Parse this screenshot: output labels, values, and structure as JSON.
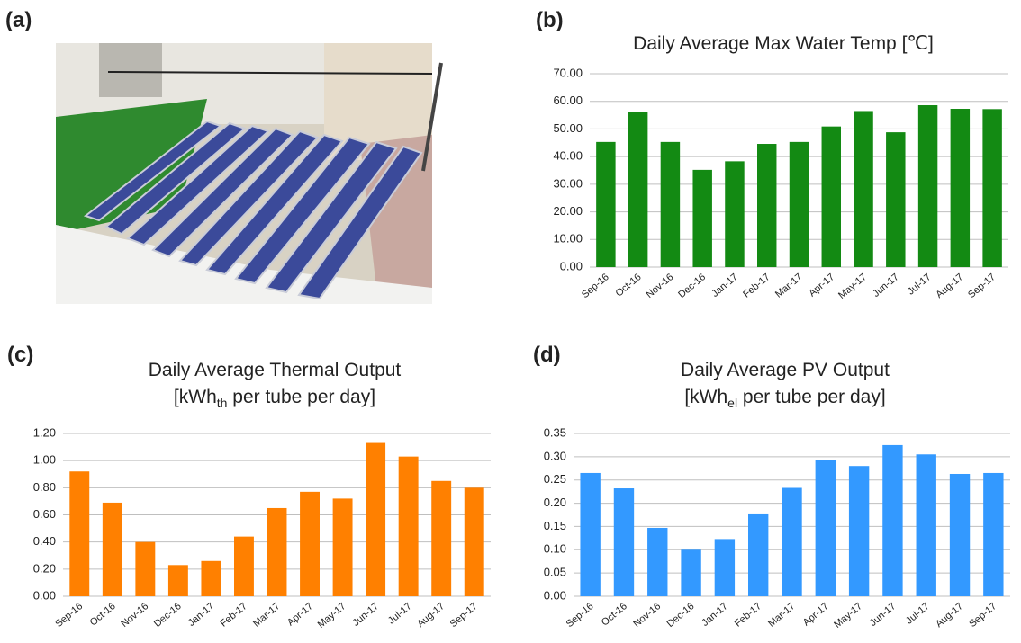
{
  "figure_a": {
    "label": "(a)"
  },
  "chart_data": [
    {
      "type": "bar",
      "label": "(b)",
      "title": "Daily Average Max Water Temp [℃]",
      "color": "#138a13",
      "grid": true,
      "categories": [
        "Sep-16",
        "Oct-16",
        "Nov-16",
        "Dec-16",
        "Jan-17",
        "Feb-17",
        "Mar-17",
        "Apr-17",
        "May-17",
        "Jun-17",
        "Jul-17",
        "Aug-17",
        "Sep-17"
      ],
      "values": [
        45.3,
        56.2,
        45.3,
        35.2,
        38.3,
        44.6,
        45.3,
        50.9,
        56.5,
        48.8,
        58.6,
        57.3,
        57.2
      ],
      "ylim": [
        0,
        70
      ],
      "yticks": [
        {
          "value": 0,
          "label": "0.00"
        },
        {
          "value": 10,
          "label": "10.00"
        },
        {
          "value": 20,
          "label": "20.00"
        },
        {
          "value": 30,
          "label": "30.00"
        },
        {
          "value": 40,
          "label": "40.00"
        },
        {
          "value": 50,
          "label": "50.00"
        },
        {
          "value": 60,
          "label": "60.00"
        },
        {
          "value": 70,
          "label": "70.00"
        }
      ]
    },
    {
      "type": "bar",
      "label": "(c)",
      "title": "Daily Average Thermal Output",
      "subtitle_parts": [
        "[kWh",
        "th",
        " per tube per day]"
      ],
      "color": "#ff8000",
      "grid": true,
      "categories": [
        "Sep-16",
        "Oct-16",
        "Nov-16",
        "Dec-16",
        "Jan-17",
        "Feb-17",
        "Mar-17",
        "Apr-17",
        "May-17",
        "Jun-17",
        "Jul-17",
        "Aug-17",
        "Sep-17"
      ],
      "values": [
        0.92,
        0.69,
        0.4,
        0.23,
        0.26,
        0.44,
        0.65,
        0.77,
        0.72,
        1.13,
        1.03,
        0.85,
        0.8
      ],
      "ylim": [
        0,
        1.2
      ],
      "yticks": [
        {
          "value": 0,
          "label": "0.00"
        },
        {
          "value": 0.2,
          "label": "0.20"
        },
        {
          "value": 0.4,
          "label": "0.40"
        },
        {
          "value": 0.6,
          "label": "0.60"
        },
        {
          "value": 0.8,
          "label": "0.80"
        },
        {
          "value": 1,
          "label": "1.00"
        },
        {
          "value": 1.2,
          "label": "1.20"
        }
      ]
    },
    {
      "type": "bar",
      "label": "(d)",
      "title": "Daily Average PV Output",
      "subtitle_parts": [
        "[kWh",
        "el",
        " per tube per day]"
      ],
      "color": "#3399ff",
      "grid": true,
      "categories": [
        "Sep-16",
        "Oct-16",
        "Nov-16",
        "Dec-16",
        "Jan-17",
        "Feb-17",
        "Mar-17",
        "Apr-17",
        "May-17",
        "Jun-17",
        "Jul-17",
        "Aug-17",
        "Sep-17"
      ],
      "values": [
        0.265,
        0.232,
        0.147,
        0.1,
        0.123,
        0.178,
        0.233,
        0.292,
        0.28,
        0.325,
        0.305,
        0.263,
        0.265
      ],
      "ylim": [
        0,
        0.35
      ],
      "yticks": [
        {
          "value": 0,
          "label": "0.00"
        },
        {
          "value": 0.05,
          "label": "0.05"
        },
        {
          "value": 0.1,
          "label": "0.10"
        },
        {
          "value": 0.15,
          "label": "0.15"
        },
        {
          "value": 0.2,
          "label": "0.20"
        },
        {
          "value": 0.25,
          "label": "0.25"
        },
        {
          "value": 0.3,
          "label": "0.30"
        },
        {
          "value": 0.35,
          "label": "0.35"
        }
      ]
    }
  ]
}
